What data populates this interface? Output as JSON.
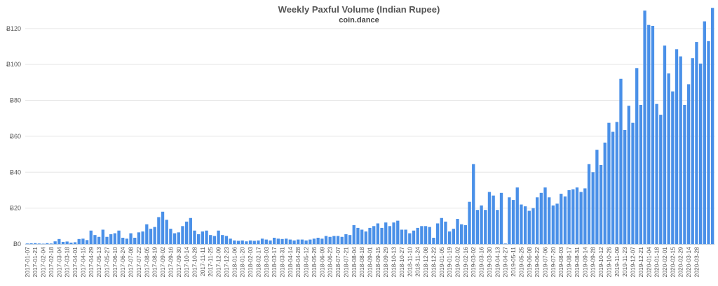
{
  "chart_data": {
    "type": "bar",
    "title": "Weekly Paxful Volume (Indian Rupee)",
    "subtitle": "coin.dance",
    "xlabel": "",
    "ylabel": "",
    "ylim": [
      0,
      132
    ],
    "grid": true,
    "legend": "none",
    "y_ticks": [
      "Ƀ0",
      "Ƀ20",
      "Ƀ40",
      "Ƀ60",
      "Ƀ80",
      "Ƀ100",
      "Ƀ120"
    ],
    "y_tick_values": [
      0,
      20,
      40,
      60,
      80,
      100,
      120
    ],
    "x_tick_labels": [
      "2017-01-07",
      "2017-01-21",
      "2017-02-04",
      "2017-02-18",
      "2017-03-04",
      "2017-03-18",
      "2017-04-01",
      "2017-04-15",
      "2017-04-29",
      "2017-05-13",
      "2017-05-27",
      "2017-06-10",
      "2017-06-24",
      "2017-07-08",
      "2017-07-22",
      "2017-08-05",
      "2017-08-19",
      "2017-09-02",
      "2017-09-16",
      "2017-09-30",
      "2017-10-14",
      "2017-10-28",
      "2017-11-11",
      "2017-11-25",
      "2017-12-09",
      "2017-12-23",
      "2018-01-06",
      "2018-01-20",
      "2018-02-03",
      "2018-02-17",
      "2018-03-03",
      "2018-03-17",
      "2018-03-31",
      "2018-04-14",
      "2018-04-28",
      "2018-05-12",
      "2018-05-26",
      "2018-06-09",
      "2018-06-23",
      "2018-07-07",
      "2018-07-21",
      "2018-08-04",
      "2018-08-18",
      "2018-09-01",
      "2018-09-15",
      "2018-09-29",
      "2018-10-13",
      "2018-10-27",
      "2018-11-10",
      "2018-11-24",
      "2018-12-08",
      "2018-12-22",
      "2019-01-05",
      "2019-01-19",
      "2019-02-02",
      "2019-02-16",
      "2019-03-02",
      "2019-03-16",
      "2019-03-30",
      "2019-04-13",
      "2019-04-27",
      "2019-05-11",
      "2019-05-25",
      "2019-06-08",
      "2019-06-22",
      "2019-07-06",
      "2019-07-20",
      "2019-08-03",
      "2019-08-17",
      "2019-08-31",
      "2019-09-14",
      "2019-09-28",
      "2019-10-12",
      "2019-10-26",
      "2019-11-09",
      "2019-11-23",
      "2019-12-07",
      "2019-12-21",
      "2020-01-04",
      "2020-01-18",
      "2020-02-01",
      "2020-02-15",
      "2020-02-29",
      "2020-03-14",
      "2020-03-28"
    ],
    "color": "#4a90e8",
    "values": [
      0.3,
      0.4,
      0.5,
      0.3,
      0.2,
      0.5,
      0.3,
      1.5,
      2.8,
      1.2,
      1.4,
      0.8,
      1.0,
      2.8,
      3.0,
      2.2,
      7.5,
      5.0,
      4.0,
      8.0,
      4.0,
      5.5,
      6.0,
      7.5,
      3.5,
      3.0,
      6.0,
      3.5,
      6.5,
      7.0,
      11.0,
      8.5,
      9.5,
      15.0,
      18.0,
      13.5,
      8.5,
      6.0,
      6.5,
      10.0,
      12.5,
      14.5,
      7.5,
      5.5,
      7.0,
      7.5,
      5.0,
      4.5,
      7.5,
      5.0,
      4.5,
      3.0,
      2.0,
      1.8,
      2.0,
      1.5,
      2.0,
      1.8,
      2.0,
      3.0,
      2.5,
      2.0,
      3.5,
      3.0,
      2.8,
      3.0,
      2.5,
      2.0,
      2.5,
      2.5,
      2.0,
      2.5,
      3.0,
      3.5,
      3.0,
      4.5,
      4.0,
      4.5,
      4.5,
      4.0,
      5.5,
      5.0,
      10.5,
      9.0,
      8.0,
      7.0,
      9.0,
      10.0,
      11.5,
      9.0,
      12.0,
      10.0,
      12.0,
      13.0,
      8.0,
      8.0,
      6.0,
      7.5,
      9.0,
      10.0,
      10.0,
      9.5,
      3.5,
      11.5,
      14.5,
      12.5,
      7.0,
      8.5,
      14.0,
      11.0,
      10.5,
      23.5,
      44.5,
      19.0,
      21.5,
      19.0,
      29.0,
      27.0,
      19.0,
      28.5,
      0.3,
      26.0,
      24.5,
      31.5,
      22.0,
      21.0,
      18.5,
      20.0,
      26.0,
      28.5,
      31.5,
      26.0,
      21.5,
      22.5,
      28.0,
      26.5,
      30.0,
      30.5,
      31.5,
      29.0,
      31.0,
      44.5,
      40.0,
      52.5,
      44.0,
      56.5,
      67.5,
      62.5,
      68.0,
      92.0,
      63.5,
      77.0,
      67.5,
      98.0,
      77.5,
      130.0,
      122.0,
      121.5,
      78.0,
      72.0,
      110.5,
      95.0,
      85.0,
      108.5,
      104.5,
      77.5,
      89.0,
      103.5,
      112.5,
      100.5,
      124.0,
      113.0,
      131.5
    ]
  }
}
